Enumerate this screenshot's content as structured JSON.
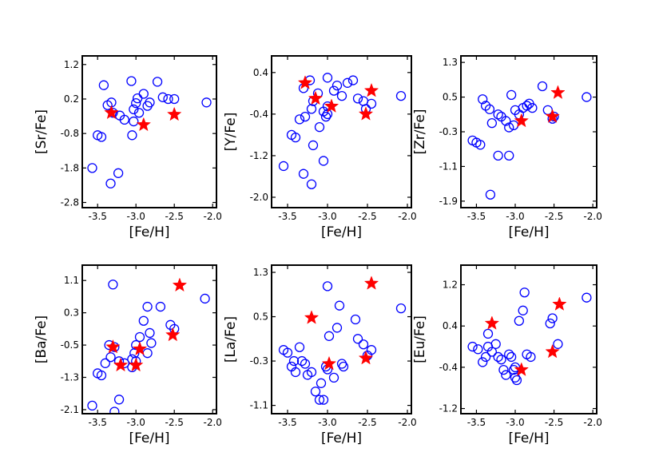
{
  "chart_data": [
    {
      "type": "scatter",
      "xlabel": "[Fe/H]",
      "ylabel": "[Sr/Fe]",
      "xlim": [
        -3.7,
        -1.95
      ],
      "ylim": [
        -2.95,
        1.45
      ],
      "xticks": [
        -3.5,
        -3.0,
        -2.5,
        -2.0
      ],
      "xtick_labels": [
        "-3.5",
        "-3.0",
        "-2.5",
        "-2.0"
      ],
      "yticks": [
        1.2,
        0.2,
        -0.8,
        -1.8,
        -2.8
      ],
      "ytick_labels": [
        "1.2",
        "0.2",
        "-0.8",
        "-1.8",
        "-2.8"
      ],
      "series": [
        {
          "name": "circles",
          "marker": "open-circle",
          "color": "#0000ff",
          "x": [
            -3.42,
            -3.37,
            -3.32,
            -3.3,
            -3.21,
            -3.15,
            -3.06,
            -3.03,
            -3.0,
            -2.98,
            -2.9,
            -2.85,
            -2.82,
            -2.72,
            -2.65,
            -2.58,
            -2.5,
            -2.08,
            -3.57,
            -3.5,
            -3.45,
            -3.05,
            -3.03,
            -2.96,
            -3.33,
            -3.23
          ],
          "y": [
            0.6,
            0.02,
            0.1,
            -0.2,
            -0.28,
            -0.4,
            0.72,
            -0.1,
            0.08,
            0.22,
            0.35,
            0.0,
            0.1,
            0.7,
            0.25,
            0.2,
            0.2,
            0.1,
            -1.8,
            -0.85,
            -0.9,
            -0.85,
            -0.45,
            -0.2,
            -2.25,
            -1.95
          ]
        },
        {
          "name": "stars",
          "marker": "star",
          "color": "#ff0000",
          "x": [
            -3.32,
            -2.9,
            -2.5
          ],
          "y": [
            -0.2,
            -0.55,
            -0.25
          ]
        }
      ]
    },
    {
      "type": "scatter",
      "xlabel": "[Fe/H]",
      "ylabel": "[Y/Fe]",
      "xlim": [
        -3.7,
        -1.95
      ],
      "ylim": [
        -2.2,
        0.72
      ],
      "xticks": [
        -3.5,
        -3.0,
        -2.5,
        -2.0
      ],
      "xtick_labels": [
        "-3.5",
        "-3.0",
        "-2.5",
        "-2.0"
      ],
      "yticks": [
        0.4,
        -0.4,
        -1.2,
        -2.0
      ],
      "ytick_labels": [
        "0.4",
        "-0.4",
        "-1.2",
        "-2.0"
      ],
      "series": [
        {
          "name": "circles",
          "marker": "open-circle",
          "color": "#0000ff",
          "x": [
            -3.35,
            -3.3,
            -3.22,
            -3.2,
            -3.18,
            -3.12,
            -3.05,
            -3.02,
            -3.0,
            -3.0,
            -2.92,
            -2.88,
            -2.82,
            -2.75,
            -2.68,
            -2.62,
            -2.55,
            -2.52,
            -2.45,
            -2.08,
            -3.55,
            -3.45,
            -3.4,
            -3.28,
            -3.18,
            -3.1,
            -3.05,
            -3.0,
            -3.3,
            -3.2
          ],
          "y": [
            -0.5,
            0.1,
            0.25,
            -0.3,
            -0.15,
            0.0,
            -0.35,
            -0.45,
            0.3,
            -0.25,
            0.05,
            0.15,
            -0.05,
            0.2,
            0.25,
            -0.1,
            -0.15,
            -0.3,
            -0.2,
            -0.05,
            -1.4,
            -0.8,
            -0.85,
            -0.45,
            -1.0,
            -0.65,
            -1.3,
            -0.4,
            -1.55,
            -1.75
          ]
        },
        {
          "name": "stars",
          "marker": "star",
          "color": "#ff0000",
          "x": [
            -3.28,
            -3.15,
            -2.95,
            -2.52,
            -2.45
          ],
          "y": [
            0.2,
            -0.1,
            -0.25,
            -0.4,
            0.05
          ]
        }
      ]
    },
    {
      "type": "scatter",
      "xlabel": "[Fe/H]",
      "ylabel": "[Zr/Fe]",
      "xlim": [
        -3.7,
        -1.95
      ],
      "ylim": [
        -2.05,
        1.45
      ],
      "xticks": [
        -3.5,
        -3.0,
        -2.5,
        -2.0
      ],
      "xtick_labels": [
        "-3.5",
        "-3.0",
        "-2.5",
        "-2.0"
      ],
      "yticks": [
        1.3,
        0.5,
        -0.3,
        -1.1,
        -1.9
      ],
      "ytick_labels": [
        "1.3",
        "0.5",
        "-0.3",
        "-1.1",
        "-1.9"
      ],
      "series": [
        {
          "name": "circles",
          "marker": "open-circle",
          "color": "#0000ff",
          "x": [
            -3.42,
            -3.38,
            -3.33,
            -3.3,
            -3.22,
            -3.18,
            -3.12,
            -3.08,
            -3.05,
            -3.02,
            -3.0,
            -2.95,
            -2.9,
            -2.85,
            -2.82,
            -2.78,
            -2.65,
            -2.58,
            -2.52,
            -2.5,
            -2.08,
            -3.55,
            -3.5,
            -3.45,
            -3.22,
            -3.08,
            -3.32
          ],
          "y": [
            0.45,
            0.3,
            0.22,
            -0.1,
            0.1,
            0.05,
            -0.05,
            -0.2,
            0.55,
            -0.15,
            0.2,
            0.1,
            0.25,
            0.3,
            0.35,
            0.25,
            0.75,
            0.2,
            0.0,
            0.05,
            0.5,
            -0.5,
            -0.55,
            -0.6,
            -0.85,
            -0.85,
            -1.75
          ]
        },
        {
          "name": "stars",
          "marker": "star",
          "color": "#ff0000",
          "x": [
            -2.92,
            -2.52,
            -2.45
          ],
          "y": [
            -0.05,
            0.05,
            0.6
          ]
        }
      ]
    },
    {
      "type": "scatter",
      "xlabel": "[Fe/H]",
      "ylabel": "[Ba/Fe]",
      "xlim": [
        -3.7,
        -1.95
      ],
      "ylim": [
        -2.2,
        1.48
      ],
      "xticks": [
        -3.5,
        -3.0,
        -2.5,
        -2.0
      ],
      "xtick_labels": [
        "-3.5",
        "-3.0",
        "-2.5",
        "-2.0"
      ],
      "yticks": [
        1.1,
        0.3,
        -0.5,
        -1.3,
        -2.1
      ],
      "ytick_labels": [
        "1.1",
        "0.3",
        "-0.5",
        "-1.3",
        "-2.1"
      ],
      "series": [
        {
          "name": "circles",
          "marker": "open-circle",
          "color": "#0000ff",
          "x": [
            -3.57,
            -3.5,
            -3.45,
            -3.4,
            -3.35,
            -3.33,
            -3.28,
            -3.22,
            -3.15,
            -3.05,
            -3.05,
            -3.02,
            -3.0,
            -3.0,
            -2.95,
            -2.9,
            -2.85,
            -2.85,
            -2.82,
            -2.8,
            -2.68,
            -2.55,
            -2.5,
            -2.1,
            -3.28,
            -3.22,
            -3.3
          ],
          "y": [
            -2.0,
            -1.2,
            -1.25,
            -0.95,
            -0.5,
            -0.8,
            -0.55,
            -0.9,
            -0.95,
            -0.85,
            -1.05,
            -0.7,
            -0.5,
            -0.9,
            -0.3,
            0.1,
            -0.7,
            0.45,
            -0.2,
            -0.45,
            0.45,
            0.0,
            -0.1,
            0.65,
            -2.15,
            -1.85,
            1.0
          ]
        },
        {
          "name": "stars",
          "marker": "star",
          "color": "#ff0000",
          "x": [
            -3.3,
            -3.2,
            -3.0,
            -2.95,
            -2.52,
            -2.43
          ],
          "y": [
            -0.55,
            -1.0,
            -1.0,
            -0.6,
            -0.25,
            0.98
          ]
        }
      ]
    },
    {
      "type": "scatter",
      "xlabel": "[Fe/H]",
      "ylabel": "[La/Fe]",
      "xlim": [
        -3.7,
        -1.95
      ],
      "ylim": [
        -1.25,
        1.43
      ],
      "xticks": [
        -3.5,
        -3.0,
        -2.5,
        -2.0
      ],
      "xtick_labels": [
        "-3.5",
        "-3.0",
        "-2.5",
        "-2.0"
      ],
      "yticks": [
        1.3,
        0.5,
        -0.3,
        -1.1
      ],
      "ytick_labels": [
        "1.3",
        "0.5",
        "-0.3",
        "-1.1"
      ],
      "series": [
        {
          "name": "circles",
          "marker": "open-circle",
          "color": "#0000ff",
          "x": [
            -3.55,
            -3.5,
            -3.45,
            -3.42,
            -3.4,
            -3.35,
            -3.32,
            -3.28,
            -3.25,
            -3.2,
            -3.15,
            -3.1,
            -3.08,
            -3.05,
            -3.02,
            -3.0,
            -2.98,
            -2.92,
            -2.88,
            -2.85,
            -2.82,
            -2.8,
            -2.65,
            -2.62,
            -2.55,
            -2.5,
            -2.45,
            -2.08,
            -3.0
          ],
          "y": [
            -0.1,
            -0.15,
            -0.4,
            -0.3,
            -0.5,
            -0.05,
            -0.3,
            -0.35,
            -0.55,
            -0.5,
            -0.85,
            -1.0,
            -0.7,
            -1.0,
            -0.4,
            -0.45,
            0.15,
            -0.6,
            0.3,
            0.7,
            -0.35,
            -0.4,
            0.45,
            0.1,
            -0.0,
            -0.2,
            -0.1,
            0.65,
            1.05
          ]
        },
        {
          "name": "stars",
          "marker": "star",
          "color": "#ff0000",
          "x": [
            -3.2,
            -2.98,
            -2.52,
            -2.45
          ],
          "y": [
            0.48,
            -0.35,
            -0.25,
            1.1
          ]
        }
      ]
    },
    {
      "type": "scatter",
      "xlabel": "[Fe/H]",
      "ylabel": "[Eu/Fe]",
      "xlim": [
        -3.7,
        -1.95
      ],
      "ylim": [
        -1.3,
        1.58
      ],
      "xticks": [
        -3.5,
        -3.0,
        -2.5,
        -2.0
      ],
      "xtick_labels": [
        "-3.5",
        "-3.0",
        "-2.5",
        "-2.0"
      ],
      "yticks": [
        1.2,
        0.4,
        -0.4,
        -1.2
      ],
      "ytick_labels": [
        "1.2",
        "0.4",
        "-0.4",
        "-1.2"
      ],
      "series": [
        {
          "name": "circles",
          "marker": "open-circle",
          "color": "#0000ff",
          "x": [
            -3.55,
            -3.48,
            -3.42,
            -3.38,
            -3.35,
            -3.3,
            -3.25,
            -3.22,
            -3.18,
            -3.12,
            -3.08,
            -3.05,
            -3.02,
            -3.0,
            -2.98,
            -2.95,
            -2.9,
            -2.88,
            -2.85,
            -2.8,
            -2.55,
            -2.52,
            -2.45,
            -2.08,
            -3.35,
            -3.15,
            -3.0
          ],
          "y": [
            0.0,
            -0.05,
            -0.3,
            -0.2,
            0.0,
            -0.1,
            0.05,
            -0.2,
            -0.25,
            -0.55,
            -0.15,
            -0.2,
            -0.45,
            -0.4,
            -0.65,
            0.5,
            0.7,
            1.05,
            -0.15,
            -0.2,
            0.45,
            0.55,
            0.05,
            0.95,
            0.25,
            -0.45,
            -0.6
          ]
        },
        {
          "name": "stars",
          "marker": "star",
          "color": "#ff0000",
          "x": [
            -3.3,
            -2.92,
            -2.52,
            -2.43
          ],
          "y": [
            0.45,
            -0.45,
            -0.1,
            0.82
          ]
        }
      ]
    }
  ]
}
